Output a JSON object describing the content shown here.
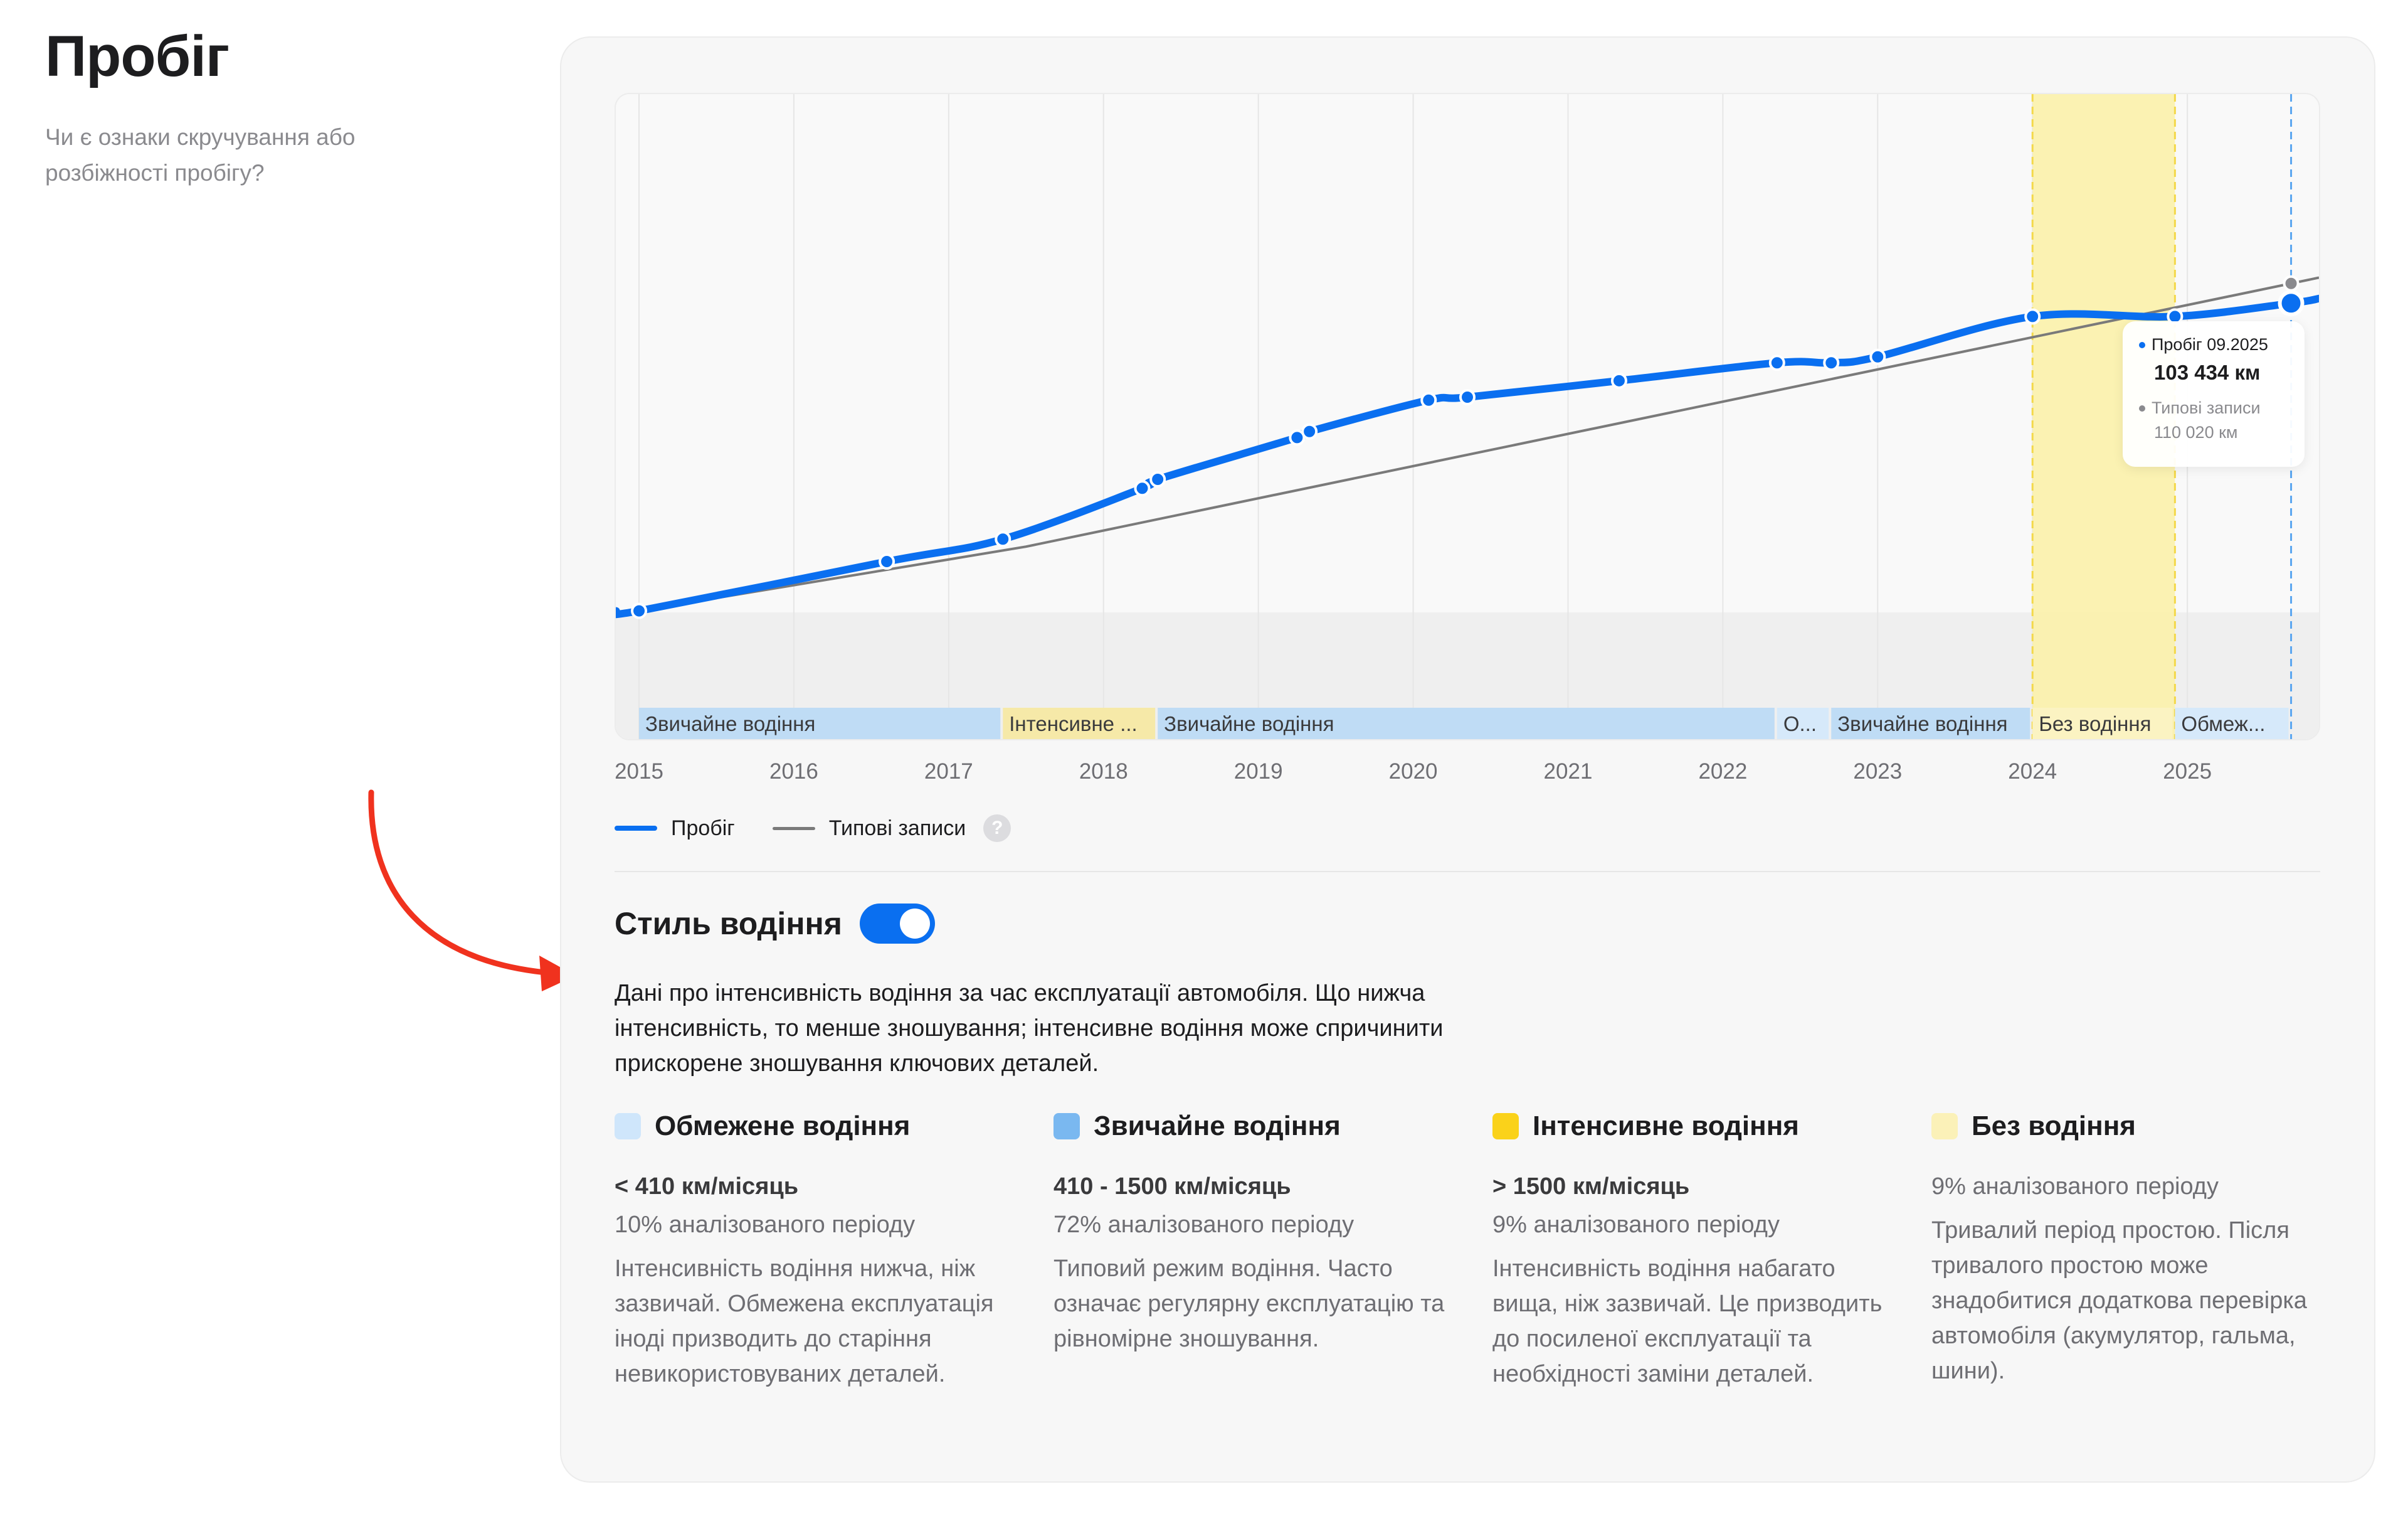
{
  "page": {
    "title": "Пробіг",
    "subtitle": "Чи є ознаки скручування або розбіжності пробігу?"
  },
  "chart_data": {
    "type": "line",
    "x_unit": "year",
    "xlim": [
      2014.85,
      2025.85
    ],
    "ylim": [
      0,
      165000
    ],
    "grid": true,
    "ticks": [
      "2015",
      "2016",
      "2017",
      "2018",
      "2019",
      "2020",
      "2021",
      "2022",
      "2023",
      "2024",
      "2025"
    ],
    "series": [
      {
        "name": "Пробіг",
        "color": "#0a6ff0",
        "points": [
          [
            2015.0,
            500
          ],
          [
            2016.6,
            17000
          ],
          [
            2017.35,
            24500
          ],
          [
            2018.25,
            41500
          ],
          [
            2018.35,
            44500
          ],
          [
            2019.25,
            58500
          ],
          [
            2019.33,
            60500
          ],
          [
            2020.1,
            71000
          ],
          [
            2020.35,
            72000
          ],
          [
            2021.33,
            77500
          ],
          [
            2022.35,
            83500
          ],
          [
            2022.7,
            83500
          ],
          [
            2023.0,
            85500
          ],
          [
            2024.0,
            99000
          ],
          [
            2024.92,
            99000
          ],
          [
            2025.67,
            103434
          ],
          [
            2025.85,
            105000
          ]
        ],
        "marked_points": [
          [
            2015.0,
            500
          ],
          [
            2016.6,
            17000
          ],
          [
            2017.35,
            24500
          ],
          [
            2018.25,
            41500
          ],
          [
            2018.35,
            44500
          ],
          [
            2019.25,
            58500
          ],
          [
            2019.33,
            60500
          ],
          [
            2020.1,
            71000
          ],
          [
            2020.35,
            72000
          ],
          [
            2021.33,
            77500
          ],
          [
            2022.35,
            83500
          ],
          [
            2022.7,
            83500
          ],
          [
            2023.0,
            85500
          ],
          [
            2024.0,
            99000
          ],
          [
            2024.92,
            99000
          ],
          [
            2025.67,
            103434
          ]
        ]
      },
      {
        "name": "Типові записи",
        "color": "#7a7a7a",
        "points": [
          [
            2015.0,
            500
          ],
          [
            2017.5,
            22000
          ],
          [
            2025.85,
            112000
          ]
        ]
      }
    ],
    "highlight_range": [
      2024.0,
      2024.92
    ],
    "cursor_x": 2025.67,
    "style_bands": [
      {
        "label": "Звичайне водіння",
        "from": 2015.0,
        "to": 2017.35,
        "color": "#bfdcf5"
      },
      {
        "label": "Інтенсивне ...",
        "from": 2017.35,
        "to": 2018.35,
        "color": "#f6e9a8"
      },
      {
        "label": "Звичайне водіння",
        "from": 2018.35,
        "to": 2022.35,
        "color": "#bfdcf5"
      },
      {
        "label": "О...",
        "from": 2022.35,
        "to": 2022.7,
        "color": "#d6e9fa"
      },
      {
        "label": "Звичайне водіння",
        "from": 2022.7,
        "to": 2024.0,
        "color": "#bfdcf5"
      },
      {
        "label": "Без водіння",
        "from": 2024.0,
        "to": 2024.92,
        "color": "#fbf3c2"
      },
      {
        "label": "Обмеж...",
        "from": 2024.92,
        "to": 2025.67,
        "color": "#d6e9fa"
      }
    ],
    "tooltip": {
      "mileage_label": "Пробіг 09.2025",
      "mileage_value": "103 434 км",
      "typical_label": "Типові записи",
      "typical_value": "110 020 км"
    }
  },
  "legend": {
    "mileage": "Пробіг",
    "typical": "Типові записи",
    "help": "?"
  },
  "driving_style": {
    "title": "Стиль водіння",
    "toggle_on": true,
    "description": "Дані про інтенсивність водіння за час експлуатації автомобіля. Що нижча інтенсивність, то менше зношування; інтенсивне водіння може спричинити прискорене зношування ключових деталей.",
    "categories": [
      {
        "title": "Обмежене водіння",
        "color": "#cfe6fb",
        "range": "< 410 км/місяць",
        "share": "10% аналізованого періоду",
        "description": "Інтенсивність водіння нижча, ніж зазвичай. Обмежена експлуатація іноді призводить до старіння невикористовуваних деталей."
      },
      {
        "title": "Звичайне водіння",
        "color": "#7ab8f0",
        "range": "410 - 1500 км/місяць",
        "share": "72% аналізованого періоду",
        "description": "Типовий режим водіння. Часто означає регулярну експлуатацію та рівномірне зношування."
      },
      {
        "title": "Інтенсивне водіння",
        "color": "#fad21a",
        "range": "> 1500 км/місяць",
        "share": "9% аналізованого періоду",
        "description": "Інтенсивність водіння набагато вища, ніж зазвичай. Це призводить до посиленої експлуатації та необхідності заміни деталей."
      },
      {
        "title": "Без водіння",
        "color": "#fbf1b8",
        "range": "",
        "share": "9% аналізованого періоду",
        "description": "Тривалий період простою. Після тривалого простою може знадобитися додаткова перевірка автомобіля (акумулятор, гальма, шини)."
      }
    ]
  },
  "colors": {
    "accent": "#0a6ff0",
    "annotation_arrow": "#f0321e"
  }
}
